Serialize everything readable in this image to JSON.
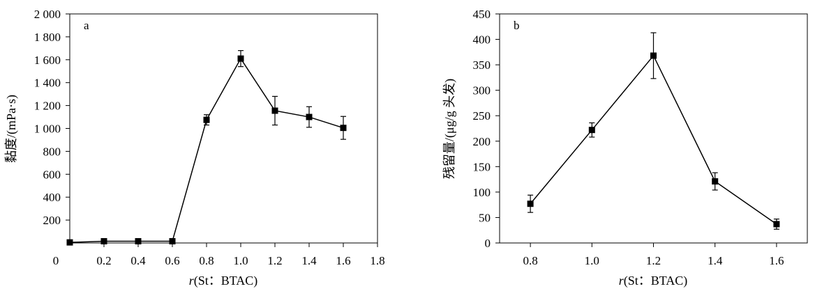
{
  "chart_data": [
    {
      "type": "line",
      "panel_label": "a",
      "xlabel_italic": "r",
      "xlabel_rest": "(St：BTAC)",
      "ylabel": "黏度/(mPa·s)",
      "xlim": [
        0,
        1.8
      ],
      "ylim": [
        0,
        2000
      ],
      "x_ticks": [
        0.2,
        0.4,
        0.6,
        0.8,
        1.0,
        1.2,
        1.4,
        1.6,
        1.8
      ],
      "x_tick_labels": [
        "0.2",
        "0.4",
        "0.6",
        "0.8",
        "1.0",
        "1.2",
        "1.4",
        "1.6",
        "1.8"
      ],
      "x_origin_label": "0",
      "y_ticks": [
        200,
        400,
        600,
        800,
        1000,
        1200,
        1400,
        1600,
        1800,
        2000
      ],
      "y_tick_labels": [
        "200",
        "400",
        "600",
        "800",
        "1 000",
        "1 200",
        "1 400",
        "1 600",
        "1 800",
        "2 000"
      ],
      "series": [
        {
          "x": [
            0,
            0.2,
            0.4,
            0.6,
            0.8,
            1.0,
            1.2,
            1.4,
            1.6
          ],
          "values": [
            5,
            15,
            15,
            15,
            1075,
            1610,
            1155,
            1100,
            1005
          ],
          "errors": [
            0,
            0,
            0,
            0,
            45,
            70,
            125,
            90,
            100
          ]
        }
      ]
    },
    {
      "type": "line",
      "panel_label": "b",
      "xlabel_italic": "r",
      "xlabel_rest": "(St：BTAC)",
      "ylabel": "残留量/(μg/g 头发)",
      "xlim": [
        0.7,
        1.7
      ],
      "ylim": [
        0,
        450
      ],
      "x_ticks": [
        0.8,
        1.0,
        1.2,
        1.4,
        1.6
      ],
      "x_tick_labels": [
        "0.8",
        "1.0",
        "1.2",
        "1.4",
        "1.6"
      ],
      "y_ticks": [
        0,
        50,
        100,
        150,
        200,
        250,
        300,
        350,
        400,
        450
      ],
      "y_tick_labels": [
        "0",
        "50",
        "100",
        "150",
        "200",
        "250",
        "300",
        "350",
        "400",
        "450"
      ],
      "series": [
        {
          "x": [
            0.8,
            1.0,
            1.2,
            1.4,
            1.6
          ],
          "values": [
            77,
            222,
            368,
            121,
            37
          ],
          "errors": [
            17,
            14,
            45,
            17,
            10
          ]
        }
      ]
    }
  ]
}
